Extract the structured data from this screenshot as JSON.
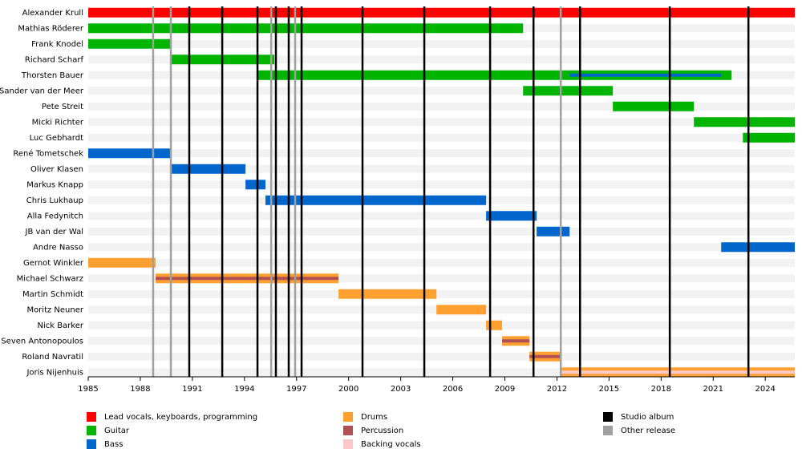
{
  "chart_data": {
    "type": "timeline",
    "categories": [
      "Alexander Krull",
      "Mathias Röderer",
      "Frank Knodel",
      "Richard Scharf",
      "Thorsten Bauer",
      "Sander van der Meer",
      "Pete Streit",
      "Micki Richter",
      "Luc Gebhardt",
      "René Tometschek",
      "Oliver Klasen",
      "Markus Knapp",
      "Chris Lukhaup",
      "Alla Fedynitch",
      "JB van der Wal",
      "Andre Nasso",
      "Gernot Winkler",
      "Michael Schwarz",
      "Martin Schmidt",
      "Moritz Neuner",
      "Nick Barker",
      "Seven Antonopoulos",
      "Roland Navratil",
      "Joris Nijenhuis"
    ],
    "series": [
      {
        "name": "Lead vocals, keyboards, programming",
        "color": "#ff0000",
        "values": [
          [
            1985,
            2025.7
          ],
          null,
          null,
          null,
          null,
          null,
          null,
          null,
          null,
          null,
          null,
          null,
          null,
          null,
          null,
          null,
          null,
          null,
          null,
          null,
          null,
          null,
          null,
          null
        ]
      },
      {
        "name": "Guitar",
        "color": "#00b400",
        "values": [
          null,
          [
            1985,
            2010.05
          ],
          [
            1985,
            1989.76
          ],
          [
            1989.76,
            1995.72
          ],
          [
            1994.75,
            2022.06
          ],
          [
            2010.05,
            2015.22
          ],
          [
            2015.22,
            2019.89
          ],
          [
            2019.89,
            2025.7
          ],
          [
            2022.71,
            2025.7
          ],
          null,
          null,
          null,
          null,
          null,
          null,
          null,
          null,
          null,
          null,
          null,
          null,
          null,
          null,
          null
        ]
      },
      {
        "name": "Bass",
        "color": "#0066cc",
        "values": [
          null,
          null,
          null,
          null,
          [
            2012.73,
            2021.46
          ],
          null,
          null,
          null,
          null,
          [
            1985,
            1989.76
          ],
          [
            1989.76,
            1994.06
          ],
          [
            1994.06,
            1995.21
          ],
          [
            1995.21,
            2007.92
          ],
          [
            2007.92,
            2010.83
          ],
          [
            2010.83,
            2012.73
          ],
          [
            2021.46,
            2025.7
          ],
          null,
          null,
          null,
          null,
          null,
          null,
          null,
          null
        ]
      },
      {
        "name": "Drums",
        "color": "#ffa030",
        "values": [
          null,
          null,
          null,
          null,
          null,
          null,
          null,
          null,
          null,
          null,
          null,
          null,
          null,
          null,
          null,
          null,
          [
            1985,
            1988.88
          ],
          [
            1988.88,
            1999.42
          ],
          [
            1999.42,
            2005.06
          ],
          [
            2005.06,
            2007.92
          ],
          [
            2007.92,
            2008.84
          ],
          [
            2008.84,
            2010.42
          ],
          [
            2010.42,
            2012.17
          ],
          [
            2012.17,
            2025.7
          ]
        ]
      },
      {
        "name": "Percussion",
        "color": "#b05050",
        "values": [
          null,
          null,
          null,
          null,
          null,
          null,
          null,
          null,
          null,
          null,
          null,
          null,
          null,
          null,
          null,
          null,
          null,
          [
            1988.88,
            1999.42
          ],
          null,
          null,
          null,
          [
            2008.84,
            2010.42
          ],
          [
            2010.42,
            2012.17
          ],
          null
        ]
      },
      {
        "name": "Backing vocals",
        "color": "#ffc8c8",
        "values": [
          null,
          null,
          null,
          null,
          null,
          null,
          null,
          null,
          null,
          null,
          null,
          null,
          null,
          null,
          null,
          null,
          null,
          null,
          null,
          null,
          null,
          null,
          null,
          [
            2012.17,
            2025.7
          ]
        ]
      }
    ],
    "events": [
      {
        "name": "Studio album",
        "color": "#000000",
        "values": [
          1990.82,
          1992.72,
          1994.75,
          1995.81,
          1996.55,
          1997.29,
          2000.8,
          2004.36,
          2008.15,
          2010.65,
          2013.33,
          2018.5,
          2023.03
        ]
      },
      {
        "name": "Other release",
        "color": "#a0a0a0",
        "values": [
          1988.74,
          1989.76,
          1995.54,
          1996.92,
          2012.22
        ]
      }
    ],
    "xlim": [
      1985,
      2025.7
    ],
    "xticks": [
      1985,
      1988,
      1991,
      1994,
      1997,
      2000,
      2003,
      2006,
      2009,
      2012,
      2015,
      2018,
      2021,
      2024
    ]
  }
}
